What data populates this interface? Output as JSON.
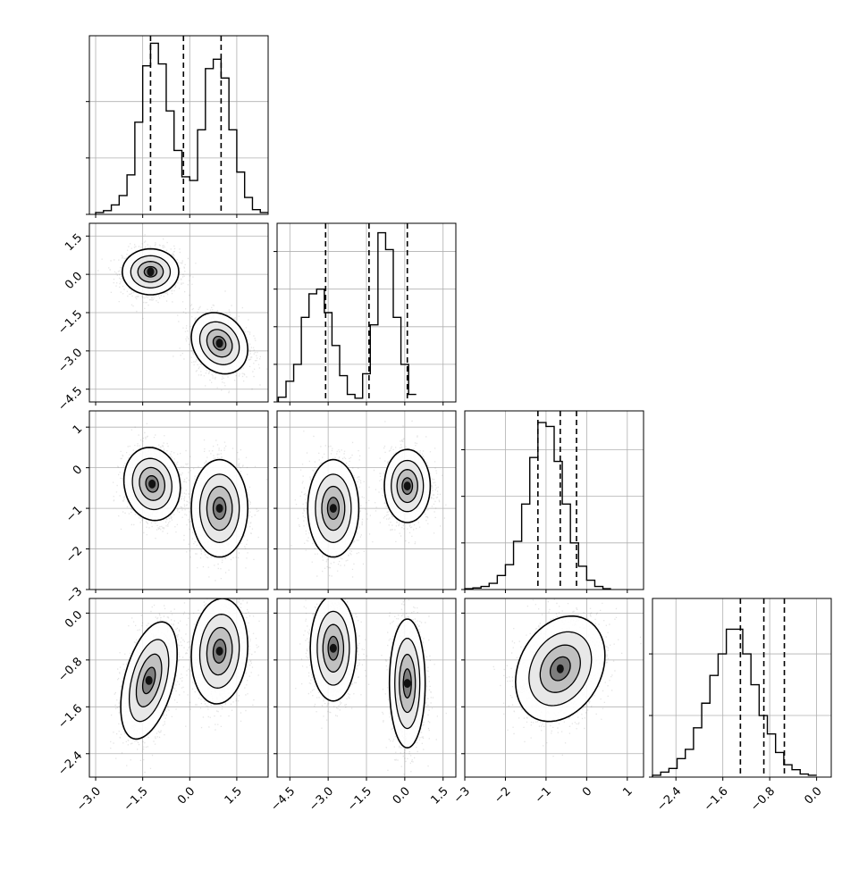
{
  "chart_data": {
    "type": "corner",
    "grid": true,
    "parameters": 4,
    "histograms": [
      {
        "param": 0,
        "bin_start": -3.0,
        "bin_width": 0.25,
        "counts": [
          2,
          4,
          10,
          20,
          42,
          98,
          158,
          182,
          160,
          110,
          68,
          40,
          36,
          90,
          155,
          165,
          145,
          90,
          45,
          18,
          5,
          2
        ],
        "quantiles": [
          -1.25,
          -0.2,
          1.0
        ],
        "ylim": [
          0,
          190
        ],
        "yticks": [
          0,
          60,
          120
        ]
      },
      {
        "param": 1,
        "bin_start": -4.95,
        "bin_width": 0.3,
        "counts": [
          5,
          22,
          40,
          90,
          115,
          120,
          95,
          60,
          28,
          8,
          4,
          30,
          82,
          180,
          162,
          90,
          40,
          8
        ],
        "quantiles": [
          -3.1,
          -1.4,
          0.1
        ],
        "ylim": [
          0,
          190
        ],
        "yticks": [
          0,
          40,
          80,
          120,
          160
        ]
      },
      {
        "param": 2,
        "bin_start": -3.0,
        "bin_width": 0.2,
        "counts": [
          1,
          2,
          4,
          8,
          18,
          32,
          62,
          110,
          170,
          215,
          210,
          165,
          110,
          60,
          30,
          12,
          4,
          1
        ],
        "quantiles": [
          -1.2,
          -0.65,
          -0.25
        ],
        "ylim": [
          0,
          230
        ],
        "yticks": [
          0,
          60,
          120,
          180
        ]
      },
      {
        "param": 3,
        "bin_start": -2.8,
        "bin_width": 0.14,
        "counts": [
          3,
          8,
          14,
          30,
          45,
          80,
          120,
          165,
          200,
          240,
          240,
          200,
          150,
          100,
          70,
          40,
          20,
          12,
          5,
          3
        ],
        "quantiles": [
          -1.3,
          -0.9,
          -0.55
        ],
        "ylim": [
          0,
          290
        ],
        "yticks": [
          0,
          100,
          200
        ]
      }
    ],
    "axis_ranges": [
      [
        -3.2,
        2.5
      ],
      [
        -5.0,
        2.0
      ],
      [
        -3.0,
        1.4
      ],
      [
        -2.8,
        0.25
      ]
    ],
    "x_ticks": [
      [
        "−3.0",
        "−1.5",
        "0.0",
        "1.5"
      ],
      [
        "−4.5",
        "−3.0",
        "−1.5",
        "0.0",
        "1.5"
      ],
      [
        "−3",
        "−2",
        "−1",
        "0",
        "1"
      ],
      [
        "−2.4",
        "−1.6",
        "−0.8",
        "0.0"
      ]
    ],
    "x_tick_values": [
      [
        -3.0,
        -1.5,
        0.0,
        1.5
      ],
      [
        -4.5,
        -3.0,
        -1.5,
        0.0,
        1.5
      ],
      [
        -3,
        -2,
        -1,
        0,
        1
      ],
      [
        -2.4,
        -1.6,
        -0.8,
        0.0
      ]
    ],
    "y_ticks": [
      [
        "1.5",
        "0.0",
        "−1.5",
        "−3.0",
        "−4.5"
      ],
      [
        "1",
        "0",
        "−1",
        "−2",
        "−3"
      ],
      [
        "0.0",
        "−0.8",
        "−1.6",
        "−2.4"
      ]
    ],
    "y_tick_values": [
      [
        1.5,
        0.0,
        -1.5,
        -3.0,
        -4.5
      ],
      [
        1,
        0,
        -1,
        -2,
        -3
      ],
      [
        0.0,
        -0.8,
        -1.6,
        -2.4
      ]
    ],
    "joint_panels": [
      {
        "row": 1,
        "col": 0,
        "clusters": [
          {
            "mx": -1.25,
            "my": 0.1,
            "sx": 0.45,
            "sy": 0.45,
            "rho": 0.0,
            "w": 1
          },
          {
            "mx": 0.95,
            "my": -2.7,
            "sx": 0.45,
            "sy": 0.6,
            "rho": -0.2,
            "w": 1
          }
        ]
      },
      {
        "row": 2,
        "col": 0,
        "clusters": [
          {
            "mx": -1.2,
            "my": -0.4,
            "sx": 0.45,
            "sy": 0.45,
            "rho": -0.1,
            "w": 1
          },
          {
            "mx": 0.95,
            "my": -1.0,
            "sx": 0.45,
            "sy": 0.6,
            "rho": 0.0,
            "w": 1
          }
        ]
      },
      {
        "row": 2,
        "col": 1,
        "clusters": [
          {
            "mx": -2.8,
            "my": -1.0,
            "sx": 0.5,
            "sy": 0.6,
            "rho": 0.0,
            "w": 1
          },
          {
            "mx": 0.1,
            "my": -0.45,
            "sx": 0.45,
            "sy": 0.45,
            "rho": 0.0,
            "w": 1
          }
        ]
      },
      {
        "row": 3,
        "col": 0,
        "clusters": [
          {
            "mx": -1.3,
            "my": -1.15,
            "sx": 0.45,
            "sy": 0.5,
            "rho": 0.45,
            "w": 1
          },
          {
            "mx": 0.95,
            "my": -0.65,
            "sx": 0.45,
            "sy": 0.45,
            "rho": 0.1,
            "w": 1
          }
        ]
      },
      {
        "row": 3,
        "col": 1,
        "clusters": [
          {
            "mx": -2.8,
            "my": -0.6,
            "sx": 0.45,
            "sy": 0.45,
            "rho": 0.0,
            "w": 1
          },
          {
            "mx": 0.1,
            "my": -1.2,
            "sx": 0.35,
            "sy": 0.55,
            "rho": 0.0,
            "w": 1
          }
        ]
      },
      {
        "row": 3,
        "col": 2,
        "clusters": [
          {
            "mx": -0.65,
            "my": -0.95,
            "sx": 0.55,
            "sy": 0.45,
            "rho": 0.25,
            "w": 1
          }
        ]
      }
    ]
  }
}
